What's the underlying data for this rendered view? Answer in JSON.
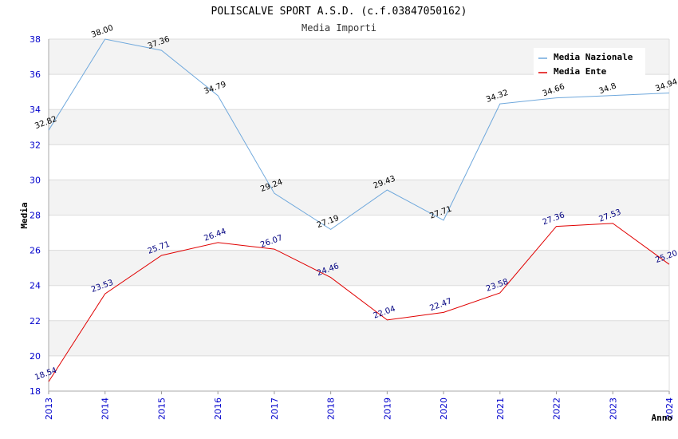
{
  "chart_data": {
    "type": "line",
    "title": "POLISCALVE SPORT A.S.D. (c.f.03847050162)",
    "subtitle": "Media Importi",
    "xlabel": "Anno",
    "ylabel": "Media",
    "ylim": [
      18,
      38
    ],
    "yticks": [
      "18",
      "20",
      "22",
      "24",
      "26",
      "28",
      "30",
      "32",
      "34",
      "36",
      "38"
    ],
    "categories": [
      "2013",
      "2014",
      "2015",
      "2016",
      "2017",
      "2018",
      "2019",
      "2020",
      "2021",
      "2022",
      "2023",
      "2024"
    ],
    "grid": true,
    "legend_position": "top-right",
    "series": [
      {
        "name": "Media Nazionale",
        "color": "#6fa8dc",
        "values": [
          32.82,
          38.0,
          37.36,
          34.79,
          29.24,
          27.19,
          29.43,
          27.71,
          34.32,
          34.66,
          34.8,
          34.94
        ],
        "labels": [
          "32.82",
          "38.00",
          "37.36",
          "34.79",
          "29.24",
          "27.19",
          "29.43",
          "27.71",
          "34.32",
          "34.66",
          "34.8",
          "34.94"
        ]
      },
      {
        "name": "Media Ente",
        "color": "#e00000",
        "values": [
          18.54,
          23.53,
          25.71,
          26.44,
          26.07,
          24.46,
          22.04,
          22.47,
          23.58,
          27.36,
          27.53,
          25.2
        ],
        "labels": [
          "18.54",
          "23.53",
          "25.71",
          "26.44",
          "26.07",
          "24.46",
          "22.04",
          "22.47",
          "23.58",
          "27.36",
          "27.53",
          "25.20"
        ]
      }
    ]
  }
}
